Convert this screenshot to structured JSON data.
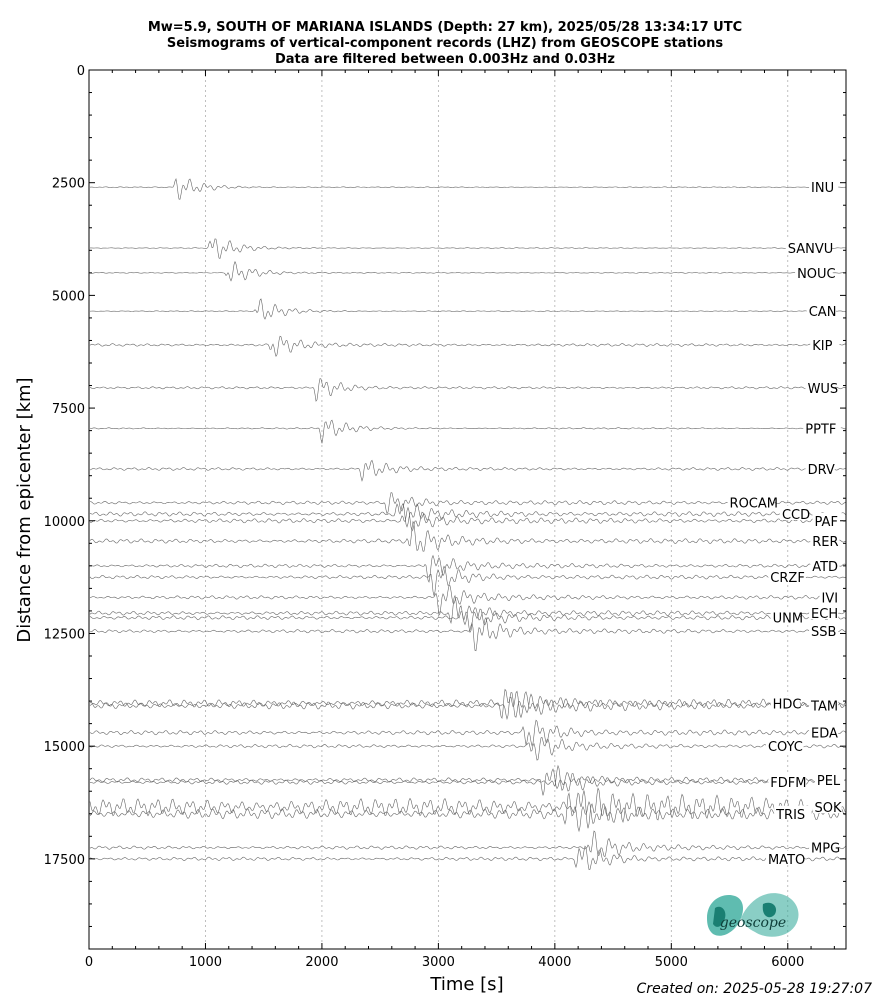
{
  "header": {
    "line1": "Mw=5.9, SOUTH OF MARIANA ISLANDS (Depth: 27 km), 2025/05/28 13:34:17 UTC",
    "line2": "Seismograms of vertical-component records (LHZ) from GEOSCOPE stations",
    "line3": "Data are filtered between 0.003Hz and 0.03Hz"
  },
  "footer": {
    "created": "Created on: 2025-05-28 19:27:07"
  },
  "logo": {
    "text": "geoscope",
    "color": "#2aa596"
  },
  "chart_data": {
    "type": "line",
    "xlabel": "Time [s]",
    "ylabel": "Distance from epicenter [km]",
    "xlim": [
      0,
      6500
    ],
    "ylim": [
      19500,
      0
    ],
    "xticks": [
      0,
      1000,
      2000,
      3000,
      4000,
      5000,
      6000
    ],
    "yticks": [
      0,
      2500,
      5000,
      7500,
      10000,
      12500,
      15000,
      17500
    ],
    "x_grid": true,
    "trace_color": "#666666",
    "stations": [
      {
        "name": "INU",
        "distance": 2600,
        "arrival": 750,
        "amp": 1.0,
        "noise": 0.03,
        "label_x": 6200
      },
      {
        "name": "SANVU",
        "distance": 3950,
        "arrival": 1050,
        "amp": 1.1,
        "noise": 0.03,
        "label_x": 6000
      },
      {
        "name": "NOUC",
        "distance": 4500,
        "arrival": 1200,
        "amp": 1.0,
        "noise": 0.03,
        "label_x": 6080
      },
      {
        "name": "CAN",
        "distance": 5350,
        "arrival": 1450,
        "amp": 1.0,
        "noise": 0.03,
        "label_x": 6180
      },
      {
        "name": "KIP",
        "distance": 6100,
        "arrival": 1570,
        "amp": 1.0,
        "noise": 0.1,
        "label_x": 6210
      },
      {
        "name": "WUS",
        "distance": 7050,
        "arrival": 1950,
        "amp": 1.0,
        "noise": 0.08,
        "label_x": 6170
      },
      {
        "name": "PPTF",
        "distance": 7950,
        "arrival": 2000,
        "amp": 1.0,
        "noise": 0.05,
        "label_x": 6150
      },
      {
        "name": "DRV",
        "distance": 8850,
        "arrival": 2350,
        "amp": 0.9,
        "noise": 0.1,
        "label_x": 6170
      },
      {
        "name": "ROCAM",
        "distance": 9600,
        "arrival": 2550,
        "amp": 0.8,
        "noise": 0.12,
        "label_x": 5500
      },
      {
        "name": "CCD",
        "distance": 9850,
        "arrival": 2650,
        "amp": 1.0,
        "noise": 0.15,
        "label_x": 5950
      },
      {
        "name": "PAF",
        "distance": 10000,
        "arrival": 2700,
        "amp": 1.0,
        "noise": 0.15,
        "label_x": 6230
      },
      {
        "name": "RER",
        "distance": 10450,
        "arrival": 2750,
        "amp": 1.3,
        "noise": 0.15,
        "label_x": 6210
      },
      {
        "name": "ATD",
        "distance": 11000,
        "arrival": 2900,
        "amp": 1.1,
        "noise": 0.12,
        "label_x": 6210
      },
      {
        "name": "CRZF",
        "distance": 11250,
        "arrival": 2950,
        "amp": 1.1,
        "noise": 0.12,
        "label_x": 5850
      },
      {
        "name": "IVI",
        "distance": 11700,
        "arrival": 3000,
        "amp": 1.1,
        "noise": 0.12,
        "label_x": 6290
      },
      {
        "name": "ECH",
        "distance": 12050,
        "arrival": 3100,
        "amp": 1.2,
        "noise": 0.14,
        "label_x": 6200
      },
      {
        "name": "UNM",
        "distance": 12150,
        "arrival": 3200,
        "amp": 1.1,
        "noise": 0.14,
        "label_x": 5870
      },
      {
        "name": "SSB",
        "distance": 12450,
        "arrival": 3300,
        "amp": 1.4,
        "noise": 0.12,
        "label_x": 6200
      },
      {
        "name": "HDC",
        "distance": 14050,
        "arrival": 3550,
        "amp": 1.1,
        "noise": 0.25,
        "label_x": 5870
      },
      {
        "name": "TAM",
        "distance": 14100,
        "arrival": 3600,
        "amp": 1.1,
        "noise": 0.25,
        "label_x": 6200
      },
      {
        "name": "EDA",
        "distance": 14700,
        "arrival": 3750,
        "amp": 1.2,
        "noise": 0.15,
        "label_x": 6200
      },
      {
        "name": "COYC",
        "distance": 15000,
        "arrival": 3800,
        "amp": 1.1,
        "noise": 0.12,
        "label_x": 5830
      },
      {
        "name": "PEL",
        "distance": 15750,
        "arrival": 3900,
        "amp": 1.0,
        "noise": 0.15,
        "label_x": 6250
      },
      {
        "name": "FDFM",
        "distance": 15800,
        "arrival": 4000,
        "amp": 1.0,
        "noise": 0.15,
        "label_x": 5850
      },
      {
        "name": "SOK",
        "distance": 16350,
        "arrival": 4200,
        "amp": 1.0,
        "noise": 0.6,
        "label_x": 6230
      },
      {
        "name": "TRIS",
        "distance": 16500,
        "arrival": 4100,
        "amp": 1.0,
        "noise": 0.35,
        "label_x": 5900
      },
      {
        "name": "MPG",
        "distance": 17250,
        "arrival": 4300,
        "amp": 1.2,
        "noise": 0.12,
        "label_x": 6200
      },
      {
        "name": "MATO",
        "distance": 17500,
        "arrival": 4200,
        "amp": 1.2,
        "noise": 0.12,
        "label_x": 5830
      }
    ]
  }
}
